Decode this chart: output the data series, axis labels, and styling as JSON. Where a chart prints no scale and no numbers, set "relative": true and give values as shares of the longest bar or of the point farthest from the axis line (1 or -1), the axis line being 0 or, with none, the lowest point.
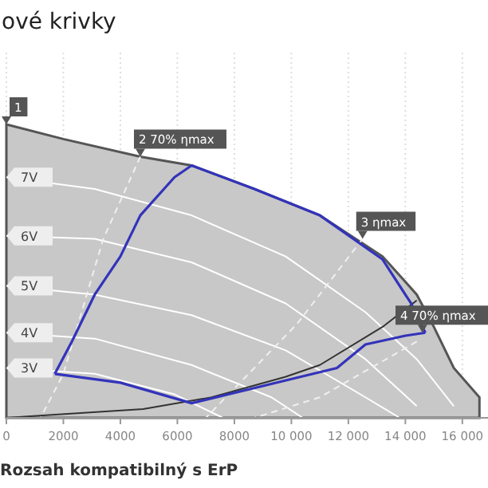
{
  "chart_data": {
    "type": "line",
    "title": "ové krivky",
    "annotations": [
      {
        "text": "1",
        "x": 0,
        "y": 1
      },
      {
        "text": "2 70% ηmax",
        "x": 4700,
        "y": 0.89
      },
      {
        "text": "3 ηmax",
        "x": 12500,
        "y": 0.61
      },
      {
        "text": "4 70% ηmax",
        "x": 14600,
        "y": 0.29
      },
      "Rozsah kompatibilný s ErP"
    ],
    "relative": true,
    "xlim": [
      0,
      16900
    ],
    "xticks": [
      0,
      2000,
      4000,
      6000,
      8000,
      {
        "value": 10000,
        "label": "10 000"
      },
      {
        "value": 12000,
        "label": "12 000"
      },
      {
        "value": 14000,
        "label": "14 000"
      },
      {
        "value": 16000,
        "label": "16 000"
      }
    ],
    "grid": "x",
    "legend": false,
    "marker": "none",
    "line_style": "solid",
    "series": [
      {
        "type": "area",
        "color": "#c8c8c8",
        "x": [
          0,
          2000,
          4700,
          6500,
          8700,
          11000,
          13200,
          14400,
          15000,
          15700,
          16600
        ],
        "values": [
          1,
          0.95,
          0.89,
          0.86,
          0.78,
          0.69,
          0.55,
          0.42,
          0.31,
          0.17,
          0.07
        ]
      },
      {
        "name": "7V",
        "color": "#ffffff",
        "x": [
          0,
          3100,
          6500,
          9800,
          12600,
          14400,
          15700
        ],
        "values": [
          0.82,
          0.78,
          0.69,
          0.55,
          0.36,
          0.2,
          0.04
        ]
      },
      {
        "name": "6V",
        "color": "#ffffff",
        "x": [
          0,
          3100,
          6500,
          9800,
          12600,
          14400
        ],
        "values": [
          0.62,
          0.61,
          0.53,
          0.39,
          0.2,
          0.04
        ]
      },
      {
        "name": "5V",
        "color": "#ffffff",
        "x": [
          0,
          3100,
          6500,
          9800,
          12600,
          13800
        ],
        "values": [
          0.45,
          0.42,
          0.35,
          0.23,
          0.07,
          0
        ]
      },
      {
        "name": "4V",
        "color": "#ffffff",
        "x": [
          0,
          3100,
          6500,
          9300,
          10400
        ],
        "values": [
          0.29,
          0.27,
          0.18,
          0.07,
          0
        ]
      },
      {
        "name": "3V",
        "color": "#ffffff",
        "x": [
          0,
          3100,
          5900,
          7600
        ],
        "values": [
          0.17,
          0.15,
          0.08,
          0
        ]
      },
      {
        "color": "#f0f0f0",
        "line_style": "dashed",
        "x": [
          4700,
          3400,
          2000,
          1200
        ],
        "values": [
          0.89,
          0.61,
          0.15,
          0
        ]
      },
      {
        "color": "#f0f0f0",
        "line_style": "dashed",
        "x": [
          12500,
          10200,
          7000
        ],
        "values": [
          0.61,
          0.32,
          0
        ]
      },
      {
        "color": "#f0f0f0",
        "line_style": "dashed",
        "x": [
          14400,
          11000,
          8700
        ],
        "values": [
          0.26,
          0.07,
          0
        ]
      },
      {
        "color": "#333333",
        "x": [
          0,
          1600,
          4800,
          7200,
          9800,
          11000,
          13200,
          14400
        ],
        "values": [
          0,
          0.01,
          0.03,
          0.07,
          0.14,
          0.18,
          0.31,
          0.4
        ]
      },
      {
        "color": "#3333bb",
        "x": [
          1700,
          2300,
          3100,
          4000,
          4700,
          5900,
          6500,
          8700,
          11000,
          13200,
          14200,
          14700
        ],
        "values": [
          0.15,
          0.26,
          0.42,
          0.55,
          0.69,
          0.82,
          0.86,
          0.78,
          0.69,
          0.54,
          0.39,
          0.29
        ]
      },
      {
        "color": "#3333bb",
        "x": [
          1700,
          4000,
          6500,
          11600,
          12600,
          14000,
          14700
        ],
        "values": [
          0.15,
          0.12,
          0.05,
          0.17,
          0.25,
          0.28,
          0.29
        ]
      }
    ]
  }
}
